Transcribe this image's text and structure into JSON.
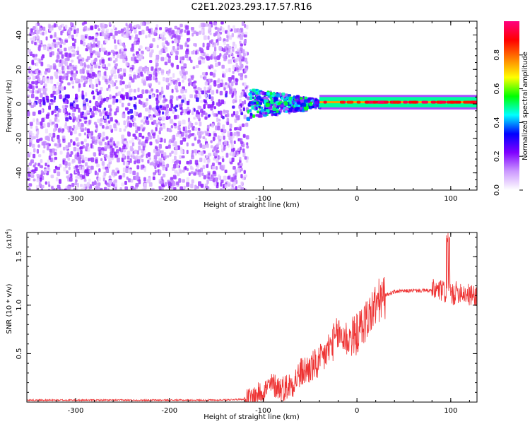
{
  "page": {
    "title": "C2E1.2023.293.17.57.R16"
  },
  "chart_data": [
    {
      "type": "heatmap",
      "xlabel": "Height of straight line (km)",
      "ylabel": "Frequency (Hz)",
      "xlim": [
        -352,
        128
      ],
      "ylim": [
        -50,
        48
      ],
      "x_ticks": [
        -300,
        -200,
        -100,
        0,
        100
      ],
      "y_ticks": [
        -40,
        -20,
        0,
        20,
        40
      ],
      "colorbar": {
        "label": "Normalized spectral amplitude",
        "range": [
          0,
          1
        ],
        "ticks": [
          0.0,
          0.2,
          0.4,
          0.6,
          0.8
        ],
        "tick_labels": [
          "0.0",
          "0.2",
          "0.4",
          "0.6",
          "0.8"
        ],
        "colors": [
          "#ffffff",
          "#cc99ff",
          "#8000ff",
          "#0000ff",
          "#00ffff",
          "#00ff00",
          "#ffff00",
          "#ff8000",
          "#ff0000",
          "#ff0080"
        ]
      },
      "regions": [
        {
          "x_range": [
            -352,
            -118
          ],
          "y_range": [
            -50,
            48
          ],
          "amplitude": 0.15,
          "description_level": "broadband scattered"
        },
        {
          "x_range": [
            -118,
            -40
          ],
          "y_range": [
            -10,
            12
          ],
          "amplitude": 0.35,
          "description_level": "transition"
        },
        {
          "x_range": [
            -40,
            128
          ],
          "y_range": [
            -2,
            4
          ],
          "amplitude": 0.75,
          "description_level": "narrow band near 1 Hz"
        }
      ],
      "grid": false
    },
    {
      "type": "line",
      "xlabel": "Height of straight line (km)",
      "ylabel": "SNR (10 * v/v)",
      "y_multiplier_label": "(x10",
      "y_multiplier_exp": "4",
      "xlim": [
        -352,
        128
      ],
      "ylim": [
        0,
        1.75
      ],
      "x_ticks": [
        -300,
        -200,
        -100,
        0,
        100
      ],
      "y_ticks": [
        0.5,
        1.0,
        1.5
      ],
      "y_tick_labels": [
        "0.5",
        "1.0",
        "1.5"
      ],
      "series_color": "#ee3333",
      "x": [
        -352,
        -300,
        -250,
        -200,
        -150,
        -120,
        -110,
        -100,
        -90,
        -80,
        -70,
        -60,
        -50,
        -40,
        -30,
        -20,
        -10,
        0,
        10,
        20,
        30,
        40,
        60,
        80,
        90,
        100,
        110,
        120,
        128
      ],
      "y": [
        0.02,
        0.02,
        0.02,
        0.02,
        0.02,
        0.03,
        0.06,
        0.12,
        0.18,
        0.14,
        0.18,
        0.3,
        0.35,
        0.4,
        0.55,
        0.7,
        0.65,
        0.7,
        0.85,
        1.0,
        1.1,
        1.14,
        1.15,
        1.15,
        1.15,
        1.1,
        1.15,
        1.1,
        1.1
      ],
      "grid": false
    }
  ]
}
